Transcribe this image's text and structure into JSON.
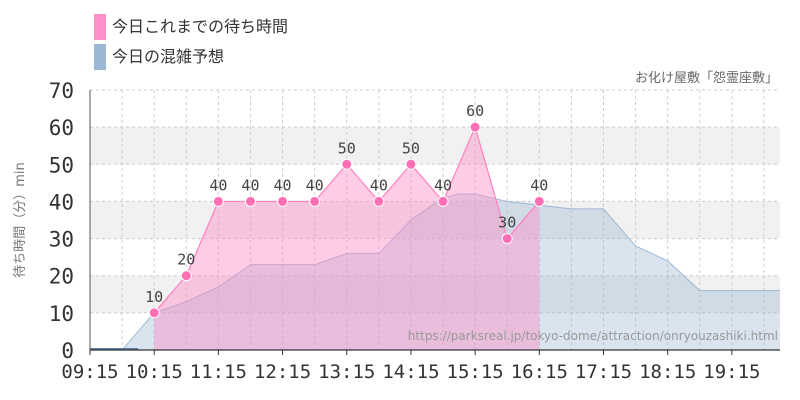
{
  "chart_data": {
    "type": "area",
    "title": "お化け屋敷「怨霊座敷」",
    "xlabel": "",
    "ylabel": "待ち時間（分）min",
    "xlim": [
      "09:15",
      "20:00"
    ],
    "ylim": [
      0,
      70
    ],
    "y_ticks": [
      0,
      10,
      20,
      30,
      40,
      50,
      60,
      70
    ],
    "x_ticks": [
      "09:15",
      "10:15",
      "11:15",
      "12:15",
      "13:15",
      "14:15",
      "15:15",
      "16:15",
      "17:15",
      "18:15",
      "19:15"
    ],
    "grid": true,
    "legend_position": "top-left",
    "source_text": "https://parksreal.jp/tokyo-dome/attraction/onryouzashiki.html",
    "series": [
      {
        "name": "今日これまでの待ち時間",
        "color": "#ff8fc8",
        "x": [
          "10:15",
          "10:45",
          "11:15",
          "11:45",
          "12:15",
          "12:45",
          "13:15",
          "13:45",
          "14:15",
          "14:45",
          "15:15",
          "15:45",
          "16:15"
        ],
        "values": [
          10,
          20,
          40,
          40,
          40,
          40,
          50,
          40,
          50,
          40,
          60,
          30,
          40
        ]
      },
      {
        "name": "今日の混雑予想",
        "color": "#9ab8d4",
        "x": [
          "09:15",
          "09:45",
          "10:00",
          "10:15",
          "10:45",
          "11:15",
          "11:45",
          "12:15",
          "12:45",
          "13:15",
          "13:45",
          "14:15",
          "14:45",
          "15:00",
          "15:15",
          "15:45",
          "16:15",
          "16:45",
          "17:15",
          "17:45",
          "18:15",
          "18:45",
          "19:15",
          "19:45",
          "20:00"
        ],
        "values": [
          0,
          0,
          5,
          10,
          13,
          17,
          23,
          23,
          23,
          26,
          26,
          35,
          41,
          42,
          42,
          40,
          39,
          38,
          38,
          28,
          24,
          16,
          16,
          16,
          16
        ]
      }
    ],
    "data_labels": [
      10,
      20,
      40,
      40,
      40,
      40,
      50,
      40,
      50,
      40,
      60,
      30,
      40
    ]
  }
}
